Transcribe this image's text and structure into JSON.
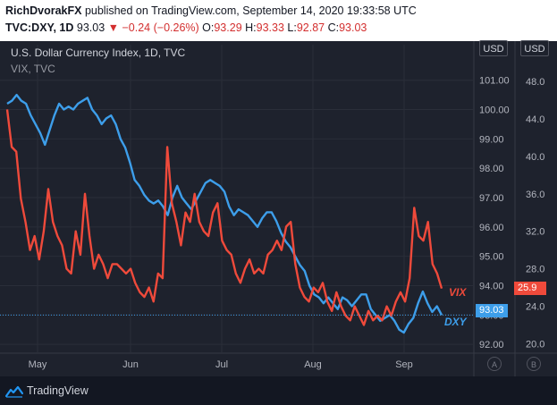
{
  "header": {
    "author": "RichDvorakFX",
    "published": "published on TradingView.com, September 14, 2020 19:33:58 UTC",
    "symbol": "TVC:DXY, 1D",
    "last": "93.03",
    "change": "▼ −0.24 (−0.26%)",
    "ohlc": {
      "o_label": "O:",
      "o": "93.29",
      "h_label": "H:",
      "h": "93.33",
      "l_label": "L:",
      "l": "92.87",
      "c_label": "C:",
      "c": "93.03"
    }
  },
  "legend": {
    "main": "U.S. Dollar Currency Index, 1D, TVC",
    "sub": "VIX, TVC"
  },
  "units": {
    "left": "USD",
    "right": "USD"
  },
  "badges": {
    "a": "A",
    "b": "B"
  },
  "footer": {
    "brand": "TradingView"
  },
  "colors": {
    "dxy": "#3d9eea",
    "vix": "#ef4a3b",
    "bg": "#1e222d"
  },
  "chart_data": {
    "type": "line",
    "x_ticks": [
      "May",
      "Jun",
      "Jul",
      "Aug",
      "Sep"
    ],
    "dxy_axis": {
      "ticks": [
        "92.00",
        "93.00",
        "94.00",
        "95.00",
        "96.00",
        "97.00",
        "98.00",
        "99.00",
        "100.00",
        "101.00"
      ],
      "ylim": [
        91.7,
        101.6
      ]
    },
    "vix_axis": {
      "ticks": [
        "20.0",
        "24.0",
        "28.0",
        "32.0",
        "36.0",
        "40.0",
        "44.0",
        "48.0"
      ],
      "ylim": [
        19.0,
        50.0
      ]
    },
    "series": [
      {
        "name": "DXY",
        "axis": "dxy",
        "values": [
          100.2,
          100.3,
          100.5,
          100.3,
          100.2,
          99.8,
          99.5,
          99.2,
          98.8,
          99.3,
          99.8,
          100.2,
          100.0,
          100.1,
          100.0,
          100.2,
          100.3,
          100.4,
          100.0,
          99.8,
          99.5,
          99.7,
          99.8,
          99.5,
          99.0,
          98.7,
          98.2,
          97.6,
          97.4,
          97.1,
          96.9,
          96.8,
          96.9,
          96.7,
          96.4,
          97.0,
          97.4,
          97.0,
          96.8,
          96.6,
          96.9,
          97.2,
          97.5,
          97.6,
          97.5,
          97.4,
          97.2,
          96.7,
          96.4,
          96.6,
          96.5,
          96.4,
          96.2,
          96.0,
          96.3,
          96.5,
          96.5,
          96.2,
          95.8,
          95.5,
          95.3,
          95.0,
          94.7,
          94.5,
          94.0,
          93.7,
          93.6,
          93.4,
          93.6,
          93.4,
          93.2,
          93.6,
          93.5,
          93.3,
          93.5,
          93.7,
          93.7,
          93.2,
          93.0,
          92.8,
          92.9,
          93.0,
          92.8,
          92.5,
          92.4,
          92.7,
          92.9,
          93.4,
          93.8,
          93.4,
          93.1,
          93.3,
          93.0
        ]
      },
      {
        "name": "VIX",
        "axis": "vix",
        "values": [
          45.0,
          41.0,
          40.5,
          35.5,
          33.0,
          30.0,
          31.5,
          29.0,
          32.0,
          36.5,
          33.0,
          31.5,
          30.5,
          28.0,
          27.5,
          32.0,
          29.5,
          36.0,
          31.5,
          28.0,
          29.5,
          28.5,
          27.0,
          28.5,
          28.5,
          28.0,
          27.5,
          28.0,
          26.5,
          25.5,
          25.0,
          26.0,
          24.5,
          27.5,
          27.0,
          41.0,
          35.0,
          33.0,
          30.5,
          34.0,
          33.0,
          36.0,
          33.0,
          32.0,
          31.5,
          34.0,
          35.0,
          31.0,
          30.0,
          29.5,
          27.5,
          26.5,
          28.0,
          29.0,
          27.5,
          28.0,
          27.5,
          29.5,
          30.0,
          31.0,
          30.0,
          32.5,
          33.0,
          28.5,
          26.0,
          25.0,
          24.5,
          26.0,
          25.5,
          26.5,
          24.5,
          23.5,
          25.5,
          24.0,
          23.0,
          22.5,
          24.0,
          23.0,
          22.0,
          23.5,
          22.5,
          23.0,
          22.5,
          24.0,
          23.0,
          24.5,
          25.5,
          24.5,
          27.0,
          34.5,
          31.5,
          31.0,
          33.0,
          28.5,
          27.5,
          25.9
        ]
      }
    ],
    "series_labels": {
      "vix": "VIX",
      "dxy": "DXY"
    },
    "last_values": {
      "vix": "25.9",
      "dxy": "93.03"
    },
    "grid": true
  }
}
